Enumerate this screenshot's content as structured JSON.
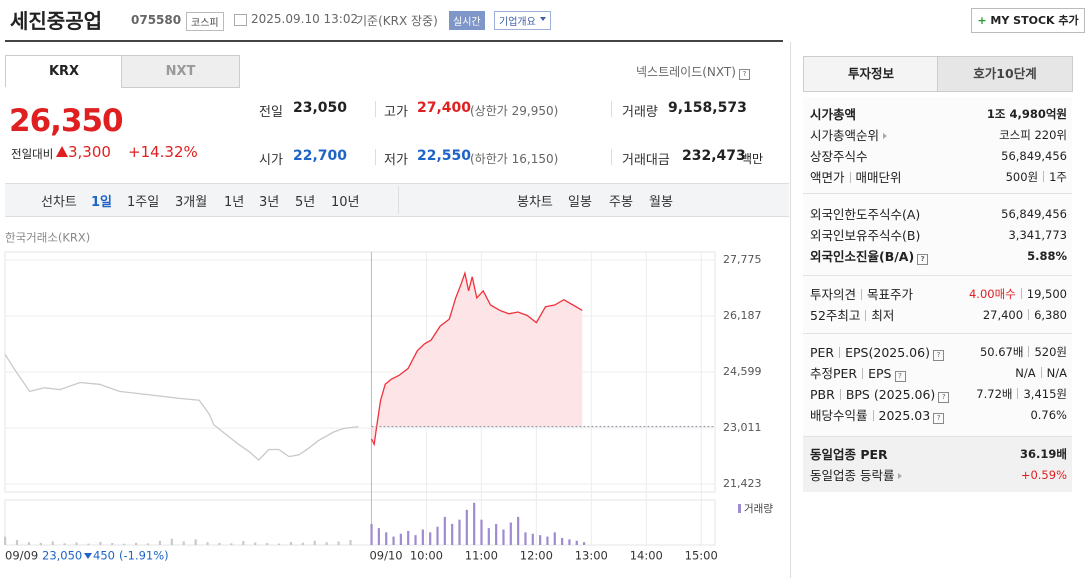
{
  "header": {
    "name": "세진중공업",
    "code": "075580",
    "market": "코스피",
    "datetime": "2025.09.10 13:02",
    "basis": "기준(KRX 장중)",
    "realtime": "실시간",
    "overview": "기업개요",
    "mystock": "MY STOCK 추가"
  },
  "tabs": {
    "krx": "KRX",
    "nxt": "NXT",
    "nxt_link": "넥스트레이드(NXT)"
  },
  "quote": {
    "price": "26,350",
    "change_label": "전일대비",
    "change": "3,300",
    "change_rate": "+14.32%",
    "fields": [
      {
        "label": "전일",
        "value": "23,050"
      },
      {
        "label": "고가",
        "value": "27,400",
        "note": "(상한가 29,950)"
      },
      {
        "label": "거래량",
        "value": "9,158,573"
      },
      {
        "label": "시가",
        "value": "22,700"
      },
      {
        "label": "저가",
        "value": "22,550",
        "note": "(하한가 16,150)"
      },
      {
        "label": "거래대금",
        "value": "232,473",
        "unit": "백만"
      }
    ]
  },
  "periods": {
    "line_label": "선차트",
    "line": [
      "1일",
      "1주일",
      "3개월",
      "1년",
      "3년",
      "5년",
      "10년"
    ],
    "candle_label": "봉차트",
    "candle": [
      "일봉",
      "주봉",
      "월봉"
    ]
  },
  "chart_data": {
    "type": "line",
    "source": "한국거래소(KRX)",
    "xlim": [
      -400,
      375
    ],
    "xticks": [
      {
        "value": 0,
        "label": "09/10"
      },
      {
        "value": 60,
        "label": "10:00"
      },
      {
        "value": 120,
        "label": "11:00"
      },
      {
        "value": 180,
        "label": "12:00"
      },
      {
        "value": 240,
        "label": "13:00"
      },
      {
        "value": 300,
        "label": "14:00"
      },
      {
        "value": 360,
        "label": "15:00"
      }
    ],
    "ylim": [
      21423,
      27775
    ],
    "yticks": [
      {
        "value": 27775,
        "label": "27,775"
      },
      {
        "value": 26187,
        "label": "26,187"
      },
      {
        "value": 24599,
        "label": "24,599"
      },
      {
        "value": 23011,
        "label": "23,011"
      },
      {
        "value": 21423,
        "label": "21,423"
      }
    ],
    "grid": true,
    "baseline": 23050,
    "series": [
      {
        "color": "#c9c9c9",
        "x": [
          -400,
          -389,
          -373,
          -357,
          -340,
          -318,
          -297,
          -275,
          -242,
          -210,
          -188,
          -177,
          -172,
          -155,
          -145,
          -134,
          -123,
          -112,
          -101,
          -90,
          -79,
          -68,
          -58,
          -41,
          -30,
          -14
        ],
        "values": [
          25100,
          24650,
          24050,
          24150,
          24100,
          24300,
          24250,
          24050,
          23950,
          23850,
          23800,
          23400,
          23100,
          22750,
          22550,
          22350,
          22100,
          22400,
          22400,
          22200,
          22250,
          22450,
          22650,
          22900,
          23000,
          23050
        ]
      },
      {
        "color": "#f0323c",
        "fill": "#fde4e6",
        "x": [
          0,
          3,
          6,
          10,
          15,
          22,
          30,
          40,
          50,
          58,
          65,
          75,
          85,
          92,
          98,
          102,
          106,
          110,
          115,
          122,
          130,
          140,
          150,
          160,
          170,
          180,
          190,
          200,
          210,
          220,
          230
        ],
        "values": [
          22700,
          22550,
          23100,
          23800,
          24250,
          24400,
          24500,
          24700,
          25200,
          25400,
          25500,
          25900,
          26100,
          26700,
          27100,
          27400,
          26900,
          27300,
          26700,
          26900,
          26500,
          26350,
          26250,
          26300,
          26200,
          26000,
          26450,
          26500,
          26650,
          26500,
          26350
        ]
      }
    ],
    "volume": {
      "label": "거래량",
      "ylim": [
        0,
        320000
      ],
      "series": [
        {
          "color": "#c9c9c9",
          "x": [
            -400,
            -387,
            -374,
            -361,
            -348,
            -335,
            -322,
            -309,
            -296,
            -283,
            -270,
            -257,
            -244,
            -231,
            -218,
            -205,
            -192,
            -179,
            -166,
            -153,
            -140,
            -127,
            -114,
            -101,
            -88,
            -75,
            -62,
            -49,
            -36,
            -23
          ],
          "values": [
            60000,
            35000,
            20000,
            15000,
            25000,
            12000,
            18000,
            10000,
            22000,
            14000,
            9000,
            16000,
            11000,
            30000,
            45000,
            25000,
            40000,
            20000,
            15000,
            12000,
            28000,
            18000,
            14000,
            10000,
            22000,
            16000,
            30000,
            20000,
            25000,
            35000
          ]
        },
        {
          "color": "#a08ad0",
          "x": [
            0,
            8,
            16,
            24,
            32,
            40,
            48,
            56,
            64,
            72,
            80,
            88,
            96,
            104,
            112,
            120,
            128,
            136,
            144,
            152,
            160,
            168,
            176,
            184,
            192,
            200,
            208,
            216,
            224,
            232
          ],
          "values": [
            150000,
            120000,
            90000,
            60000,
            80000,
            100000,
            70000,
            110000,
            90000,
            130000,
            200000,
            150000,
            180000,
            250000,
            300000,
            180000,
            120000,
            150000,
            110000,
            160000,
            200000,
            90000,
            80000,
            70000,
            60000,
            90000,
            50000,
            40000,
            30000,
            20000
          ]
        }
      ]
    },
    "footer": {
      "date": "09/09",
      "price": "23,050",
      "change": "450",
      "rate": "(-1.91%)"
    }
  },
  "side": {
    "tabs": [
      "투자정보",
      "호가10단계"
    ],
    "groups": [
      {
        "rows": [
          {
            "label": [
              "시가총액"
            ],
            "value": [
              "1조 4,980억원"
            ]
          },
          {
            "label": [
              "시가총액순위"
            ],
            "value": [
              "코스피 220위"
            ]
          },
          {
            "label": [
              "상장주식수"
            ],
            "value": [
              "56,849,456"
            ]
          },
          {
            "label": [
              "액면가",
              "매매단위"
            ],
            "value": [
              "500원",
              "1주"
            ]
          }
        ]
      },
      {
        "rows": [
          {
            "label": [
              "외국인한도주식수(A)"
            ],
            "value": [
              "56,849,456"
            ]
          },
          {
            "label": [
              "외국인보유주식수(B)"
            ],
            "value": [
              "3,341,773"
            ]
          },
          {
            "label": [
              "외국인소진율(B/A)"
            ],
            "value": [
              "5.88%"
            ]
          }
        ]
      },
      {
        "rows": [
          {
            "label": [
              "투자의견",
              "목표주가"
            ],
            "value": [
              "4.00매수",
              "19,500"
            ]
          },
          {
            "label": [
              "52주최고",
              "최저"
            ],
            "value": [
              "27,400",
              "6,380"
            ]
          }
        ]
      },
      {
        "rows": [
          {
            "label": [
              "PER",
              "EPS(2025.06)"
            ],
            "value": [
              "50.67배",
              "520원"
            ]
          },
          {
            "label": [
              "추정PER",
              "EPS"
            ],
            "value": [
              "N/A",
              "N/A"
            ]
          },
          {
            "label": [
              "PBR",
              "BPS (2025.06)"
            ],
            "value": [
              "7.72배",
              "3,415원"
            ]
          },
          {
            "label": [
              "배당수익률",
              "2025.03"
            ],
            "value": [
              "0.76%"
            ]
          }
        ]
      },
      {
        "rows": [
          {
            "label": [
              "동일업종 PER"
            ],
            "value": [
              "36.19배"
            ]
          },
          {
            "label": [
              "동일업종 등락률"
            ],
            "value": [
              "+0.59%"
            ]
          }
        ]
      }
    ]
  }
}
